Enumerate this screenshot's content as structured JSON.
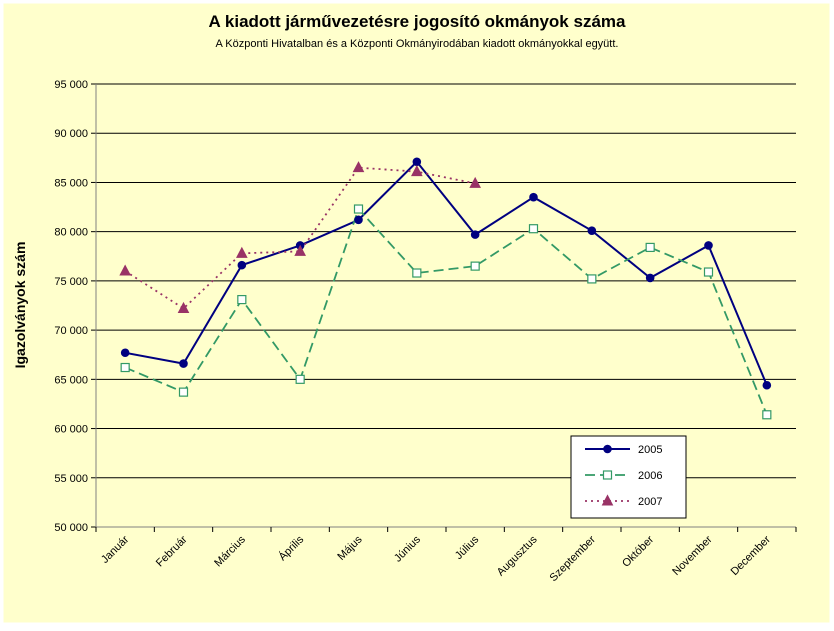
{
  "chart_data": {
    "type": "line",
    "title": "A  kiadott járművezetésre  jogosító okmányok száma",
    "subtitle": "A  Központi Hivatalban és a Központi Okmányirodában kiadott okmányokkal együtt.",
    "ylabel": "Igazolványok szám",
    "xlabel": "",
    "categories": [
      "Január",
      "Február",
      "Március",
      "Április",
      "Május",
      "Június",
      "Július",
      "Augusztus",
      "Szeptember",
      "Október",
      "November",
      "December"
    ],
    "ylim": [
      50000,
      95000
    ],
    "yticks": [
      50000,
      55000,
      60000,
      65000,
      70000,
      75000,
      80000,
      85000,
      90000,
      95000
    ],
    "ytick_labels": [
      "50 000",
      "55 000",
      "60 000",
      "65 000",
      "70 000",
      "75 000",
      "80 000",
      "85 000",
      "90 000",
      "95 000"
    ],
    "grid": true,
    "legend_position": "bottom-right",
    "series": [
      {
        "name": "2005",
        "values": [
          67700,
          66600,
          76600,
          78600,
          81200,
          87100,
          79700,
          83500,
          80100,
          75300,
          78600,
          64400
        ],
        "color": "#000080",
        "marker": "circle",
        "dash": "solid"
      },
      {
        "name": "2006",
        "values": [
          66200,
          63700,
          73100,
          65000,
          82300,
          75800,
          76500,
          80300,
          75200,
          78400,
          75900,
          61400
        ],
        "color": "#339966",
        "marker": "square-open",
        "dash": "dashed"
      },
      {
        "name": "2007",
        "values": [
          76000,
          72200,
          77800,
          78000,
          86500,
          86100,
          84900,
          null,
          null,
          null,
          null,
          null
        ],
        "color": "#993366",
        "marker": "triangle",
        "dash": "dotted"
      }
    ],
    "colors": {
      "page_background": "#ffffcc",
      "plot_background": "#ffffcc",
      "gridline": "#000000",
      "axis": "#808080"
    }
  }
}
